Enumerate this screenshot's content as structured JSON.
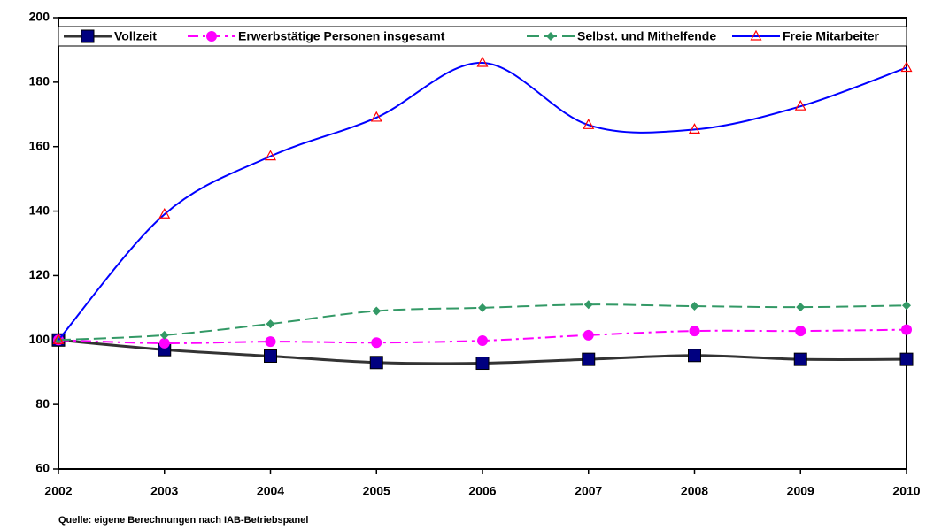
{
  "chart_data": {
    "type": "line",
    "categories": [
      "2002",
      "2003",
      "2004",
      "2005",
      "2006",
      "2007",
      "2008",
      "2009",
      "2010"
    ],
    "series": [
      {
        "name": "Vollzeit",
        "color": "#333333",
        "marker_color": "#000080",
        "marker": "square",
        "dash": "solid",
        "values": [
          100,
          97,
          95,
          93,
          92.8,
          94,
          95.2,
          94,
          94
        ]
      },
      {
        "name": "Erwerbstätige Personen insgesamt",
        "color": "#ff00ff",
        "marker_color": "#ff00ff",
        "marker": "circle",
        "dash": "dashdot",
        "values": [
          100,
          99,
          99.5,
          99.2,
          99.8,
          101.5,
          102.8,
          102.8,
          103.2
        ]
      },
      {
        "name": "Selbst. und Mithelfende",
        "color": "#339966",
        "marker_color": "#339966",
        "marker": "diamond",
        "dash": "dashed",
        "values": [
          100,
          101.5,
          105,
          109,
          110,
          111,
          110.5,
          110.2,
          110.7
        ]
      },
      {
        "name": "Freie Mitarbeiter",
        "color": "#0000ff",
        "marker_color": "#ff0000",
        "marker": "triangle",
        "dash": "solid",
        "values": [
          100,
          139,
          157,
          169,
          186,
          166.7,
          165.3,
          172.5,
          184.5
        ]
      }
    ],
    "ylim": [
      60,
      200
    ],
    "yticks": [
      60,
      80,
      100,
      120,
      140,
      160,
      180,
      200
    ],
    "smooth": true,
    "legend": "top",
    "source": "Quelle: eigene Berechnungen nach IAB-Betriebspanel"
  }
}
